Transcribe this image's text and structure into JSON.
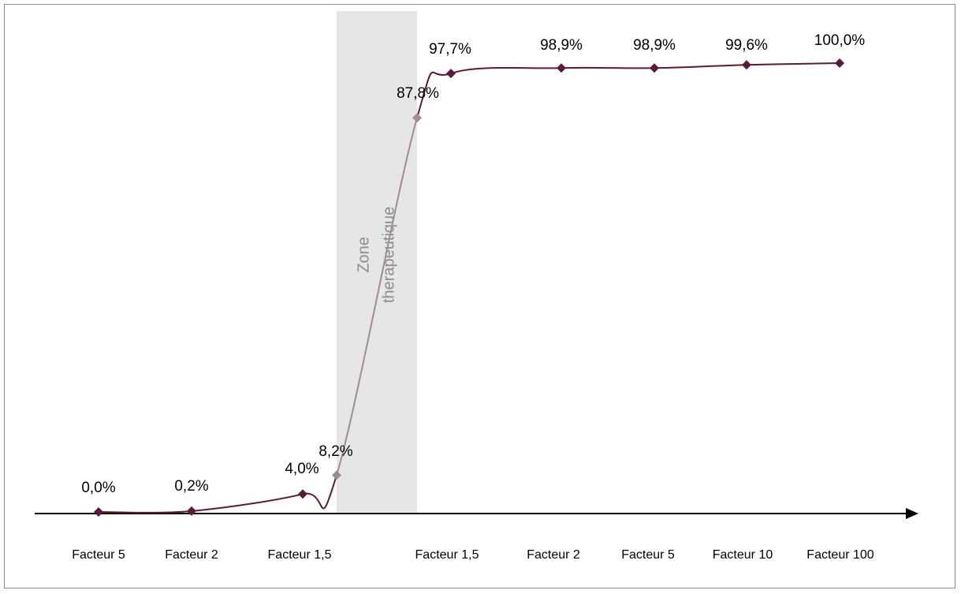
{
  "colors": {
    "line": "#5a1a3a",
    "zone_line": "#a08c96",
    "zone_fill": "#e6e6e6",
    "axis": "#000000",
    "faded_text": "#8c8c8c"
  },
  "chart_data": {
    "type": "line",
    "title": "",
    "xlabel": "",
    "ylabel": "",
    "ylim": [
      0,
      100
    ],
    "grid": false,
    "legend": "none",
    "categories": [
      "Facteur 5",
      "Facteur 2",
      "Facteur 1,5",
      "",
      "",
      "Facteur 1,5",
      "Facteur 2",
      "Facteur 5",
      "Facteur 10",
      "Facteur 100"
    ],
    "series": [
      {
        "values": [
          0.0,
          0.2,
          4.0,
          8.2,
          87.8,
          97.7,
          98.9,
          98.9,
          99.6,
          100.0
        ],
        "labels": [
          "0,0%",
          "0,2%",
          "4,0%",
          "8,2%",
          "87,8%",
          "97,7%",
          "98,9%",
          "98,9%",
          "99,6%",
          "100,0%"
        ]
      }
    ],
    "shaded_zone": {
      "label_line1": "Zone",
      "label_line2": "therapeutique",
      "from_point": 3,
      "to_point": 4
    }
  }
}
